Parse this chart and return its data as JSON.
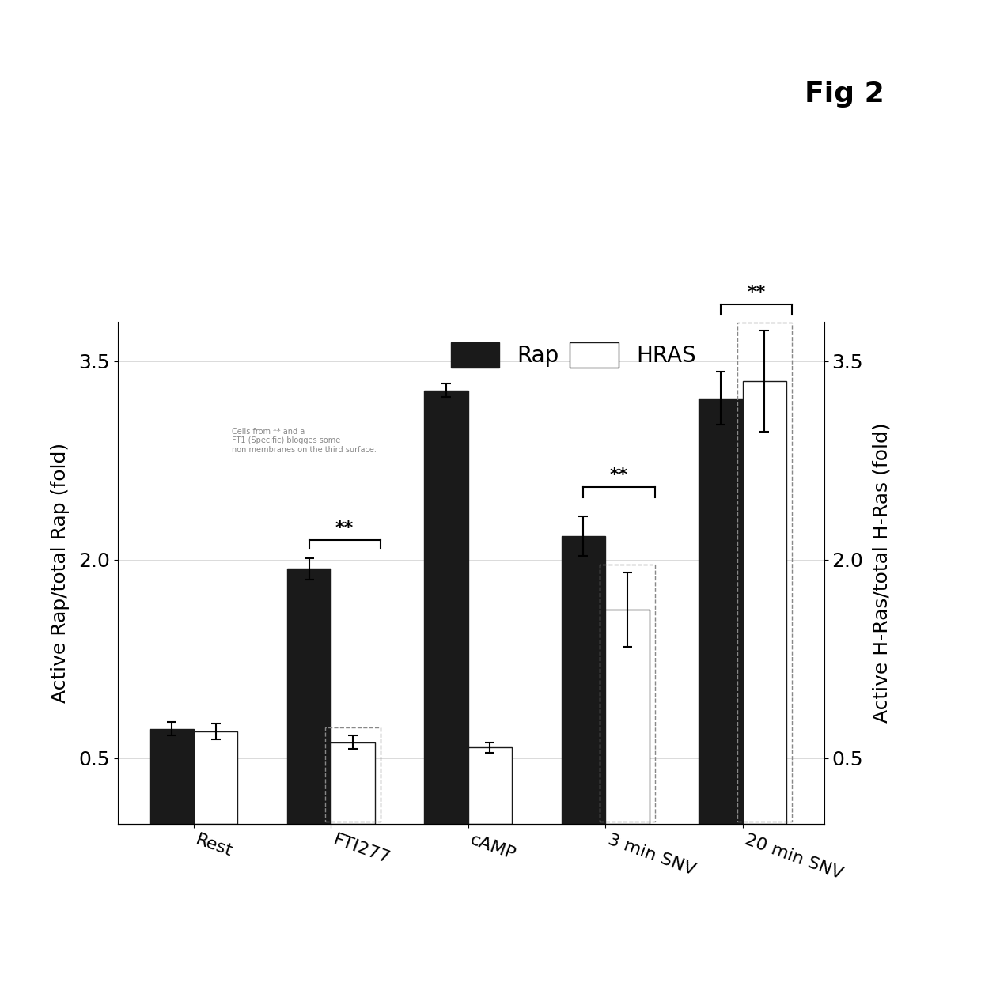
{
  "categories": [
    "Rest",
    "FTI277",
    "cAMP",
    "3 min SNV",
    "20 min SNV"
  ],
  "rap_values": [
    0.72,
    1.93,
    3.28,
    2.18,
    3.22
  ],
  "hras_values": [
    0.7,
    0.62,
    0.58,
    1.62,
    3.35
  ],
  "rap_errors": [
    0.05,
    0.08,
    0.05,
    0.15,
    0.2
  ],
  "hras_errors": [
    0.06,
    0.05,
    0.04,
    0.28,
    0.38
  ],
  "ylim": [
    0,
    3.8
  ],
  "yticks": [
    0.5,
    2.0,
    3.5
  ],
  "ylabel_left": "Active Rap/total Rap (fold)",
  "ylabel_right": "Active H-Ras/total H-Ras (fold)",
  "legend_labels": [
    "Rap",
    "HRAS"
  ],
  "fig_label": "Fig 2",
  "bar_color_rap": "#1a1a1a",
  "bar_color_hras": "#ffffff",
  "bar_edge_color": "#1a1a1a",
  "bar_width": 0.32,
  "annotation_text": "Cells from ** and a\nFT1 (Specific) blogges some\nnon membranes on the third surface."
}
